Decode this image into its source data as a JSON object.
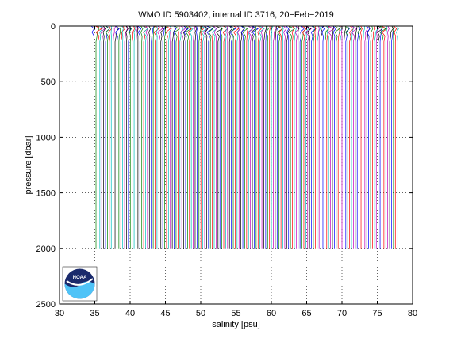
{
  "chart_data": {
    "type": "line",
    "title": "WMO ID 5903402, internal ID 3716, 20−Feb−2019",
    "xlabel": "salinity [psu]",
    "ylabel": "pressure [dbar]",
    "xlim": [
      30,
      80
    ],
    "ylim": [
      0,
      2500
    ],
    "y_reversed": true,
    "xticks": [
      30,
      35,
      40,
      45,
      50,
      55,
      60,
      65,
      70,
      75,
      80
    ],
    "yticks": [
      0,
      500,
      1000,
      1500,
      2000,
      2500
    ],
    "grid": "dotted",
    "profile_count": 160,
    "profile_start_salinity": 34.9,
    "profile_salinity_step": 0.27,
    "profile_max_pressure": 2000,
    "series_colors": [
      "#0000ff",
      "#008000",
      "#ff0000",
      "#00bfbf",
      "#bf00bf",
      "#000000"
    ]
  },
  "logo": {
    "name": "NOAA",
    "colors": {
      "navy": "#1a2a6c",
      "sky": "#4fc3f7",
      "white": "#ffffff"
    }
  }
}
